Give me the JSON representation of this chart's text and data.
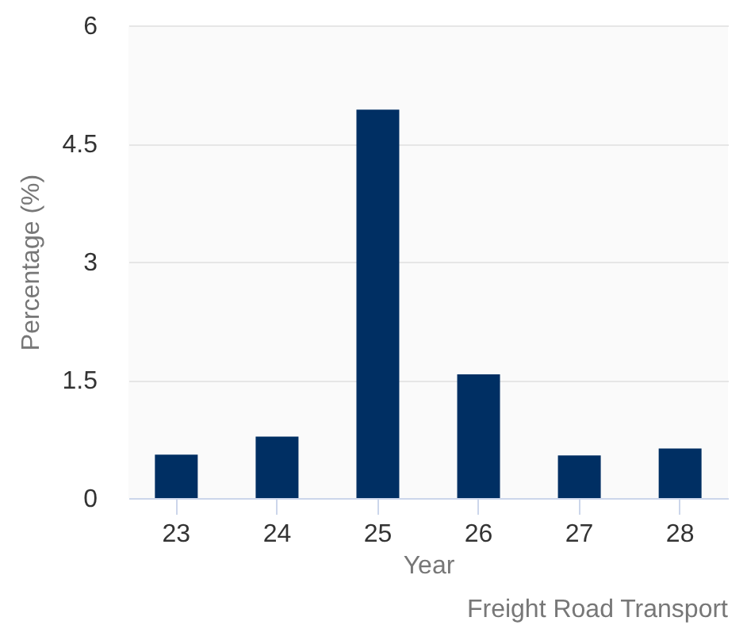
{
  "chart_data": {
    "type": "bar",
    "categories": [
      "23",
      "24",
      "25",
      "26",
      "27",
      "28"
    ],
    "values": [
      0.55,
      0.78,
      4.93,
      1.57,
      0.54,
      0.63
    ],
    "color": "#002f63",
    "xlabel": "Year",
    "ylabel": "Percentage (%)",
    "ylim": [
      0,
      6
    ],
    "yticks": [
      0,
      1.5,
      3,
      4.5,
      6
    ],
    "grid": "y",
    "annotations": [
      "Freight Road Transport"
    ]
  }
}
